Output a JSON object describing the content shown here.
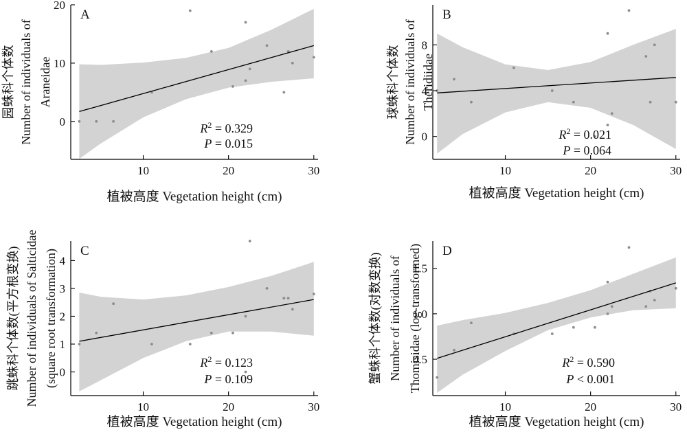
{
  "figure": {
    "colors": {
      "band": "#d3d3d3",
      "line": "#000000",
      "point": "#8c8c8c",
      "axis": "#000000"
    }
  },
  "chart_data": [
    {
      "type": "scatter",
      "panel": "A",
      "xlabel": "植被高度 Vegetation height (cm)",
      "ylabel_lines": [
        "园蛛科个体数",
        "Number of individuals of",
        "Araneidae"
      ],
      "xlim": [
        1.5,
        30.5
      ],
      "ylim": [
        -6.5,
        20
      ],
      "xticks": [
        10,
        20,
        30
      ],
      "yticks": [
        0,
        10,
        20
      ],
      "points": [
        [
          2.5,
          0
        ],
        [
          4.5,
          0
        ],
        [
          6.5,
          0
        ],
        [
          11,
          5
        ],
        [
          15.5,
          19
        ],
        [
          18,
          12
        ],
        [
          20.5,
          6
        ],
        [
          22,
          17
        ],
        [
          22,
          7
        ],
        [
          22.5,
          9
        ],
        [
          24.5,
          13
        ],
        [
          26.5,
          5
        ],
        [
          27,
          12
        ],
        [
          27.5,
          10
        ],
        [
          30,
          11
        ]
      ],
      "fit": {
        "x": [
          2.5,
          30
        ],
        "y": [
          1.7,
          13.0
        ]
      },
      "band": {
        "x": [
          2.5,
          5,
          10,
          15,
          20,
          25,
          30
        ],
        "lower": [
          -6.4,
          -3.8,
          0.7,
          3.8,
          5.8,
          6.8,
          7.4
        ],
        "upper": [
          9.8,
          9.7,
          10.1,
          10.9,
          12.6,
          15.7,
          19.3
        ]
      },
      "annotations": {
        "r2_label": "R",
        "r2_value": "2 = 0.329",
        "p_label": "P",
        "p_value": " = 0.015"
      }
    },
    {
      "type": "scatter",
      "panel": "B",
      "xlabel": "植被高度 Vegetation height (cm)",
      "ylabel_lines": [
        "球蛛科个体数",
        "Number of individuals of",
        "Theridiidae"
      ],
      "xlim": [
        1.5,
        30.5
      ],
      "ylim": [
        -2,
        11.5
      ],
      "xticks": [
        10,
        20,
        30
      ],
      "yticks": [
        0,
        4,
        8
      ],
      "points": [
        [
          2,
          4
        ],
        [
          4,
          5
        ],
        [
          6,
          3
        ],
        [
          11,
          6
        ],
        [
          15.5,
          4
        ],
        [
          18,
          3
        ],
        [
          20.5,
          0
        ],
        [
          22,
          9
        ],
        [
          22,
          1
        ],
        [
          22.5,
          2
        ],
        [
          24.5,
          11
        ],
        [
          26.5,
          7
        ],
        [
          27,
          3
        ],
        [
          27.5,
          8
        ],
        [
          30,
          3
        ]
      ],
      "fit": {
        "x": [
          2,
          30
        ],
        "y": [
          3.8,
          5.15
        ]
      },
      "band": {
        "x": [
          2,
          5,
          10,
          15,
          20,
          25,
          30
        ],
        "lower": [
          -1.5,
          0.2,
          2.1,
          3.0,
          2.5,
          1.0,
          -1.1
        ],
        "upper": [
          9.0,
          7.8,
          6.3,
          5.8,
          6.5,
          8.0,
          9.4
        ]
      },
      "annotations": {
        "r2_label": "R",
        "r2_value": "2 = 0.021",
        "p_label": "P",
        "p_value": " = 0.064"
      }
    },
    {
      "type": "scatter",
      "panel": "C",
      "xlabel": "植被高度 Vegetation height (cm)",
      "ylabel_lines": [
        "跳蛛科个体数(平方根变换)",
        "Number of individuals of Salticidae",
        "(square root transformation)"
      ],
      "xlim": [
        1.5,
        30.5
      ],
      "ylim": [
        -0.85,
        4.7
      ],
      "xticks": [
        10,
        20,
        30
      ],
      "yticks": [
        0,
        1,
        2,
        3,
        4
      ],
      "points": [
        [
          2.5,
          1.0
        ],
        [
          4.5,
          1.4
        ],
        [
          6.5,
          2.45
        ],
        [
          11,
          1.0
        ],
        [
          15.5,
          1.0
        ],
        [
          18,
          1.4
        ],
        [
          20.5,
          1.4
        ],
        [
          22,
          2.0
        ],
        [
          22,
          0.0
        ],
        [
          22.5,
          4.7
        ],
        [
          24.5,
          3.0
        ],
        [
          26.5,
          2.65
        ],
        [
          27,
          2.65
        ],
        [
          27.5,
          2.25
        ],
        [
          30,
          2.8
        ]
      ],
      "fit": {
        "x": [
          2.5,
          30
        ],
        "y": [
          1.1,
          2.6
        ]
      },
      "band": {
        "x": [
          2.5,
          5,
          10,
          15,
          20,
          25,
          30
        ],
        "lower": [
          -0.7,
          -0.3,
          0.5,
          1.1,
          1.45,
          1.45,
          1.3
        ],
        "upper": [
          2.85,
          2.7,
          2.6,
          2.75,
          3.05,
          3.45,
          3.95
        ]
      },
      "annotations": {
        "r2_label": "R",
        "r2_value": "2 = 0.123",
        "p_label": "P",
        "p_value": " = 0.109"
      }
    },
    {
      "type": "scatter",
      "panel": "D",
      "xlabel": "植被高度 Vegetation height (cm)",
      "ylabel_lines": [
        "蟹蛛科个体数(对数变换)",
        "Number of individuals of",
        "Thomisidae (log-transformed)"
      ],
      "xlim": [
        1.5,
        30.5
      ],
      "ylim": [
        0.1,
        1.8
      ],
      "xticks": [
        10,
        20,
        30
      ],
      "yticks": [
        0.5,
        1.0,
        1.5
      ],
      "ytick_labels": [
        "0.5",
        "1.0",
        "1.5"
      ],
      "points": [
        [
          2,
          0.3
        ],
        [
          4,
          0.6
        ],
        [
          6,
          0.9
        ],
        [
          11,
          0.78
        ],
        [
          15.5,
          0.78
        ],
        [
          18,
          0.85
        ],
        [
          20.5,
          0.85
        ],
        [
          22,
          1.35
        ],
        [
          22,
          1.0
        ],
        [
          22.5,
          1.08
        ],
        [
          24.5,
          1.73
        ],
        [
          26.5,
          1.08
        ],
        [
          27,
          1.25
        ],
        [
          27.5,
          1.15
        ],
        [
          30,
          1.28
        ]
      ],
      "fit": {
        "x": [
          2,
          30
        ],
        "y": [
          0.51,
          1.34
        ]
      },
      "band": {
        "x": [
          2,
          5,
          10,
          15,
          20,
          25,
          30
        ],
        "lower": [
          0.13,
          0.33,
          0.59,
          0.82,
          0.96,
          1.04,
          1.06
        ],
        "upper": [
          0.87,
          0.93,
          1.01,
          1.12,
          1.26,
          1.44,
          1.62
        ]
      },
      "annotations": {
        "r2_label": "R",
        "r2_value": "2 = 0.590",
        "p_label": "P",
        "p_value": " < 0.001"
      }
    }
  ]
}
